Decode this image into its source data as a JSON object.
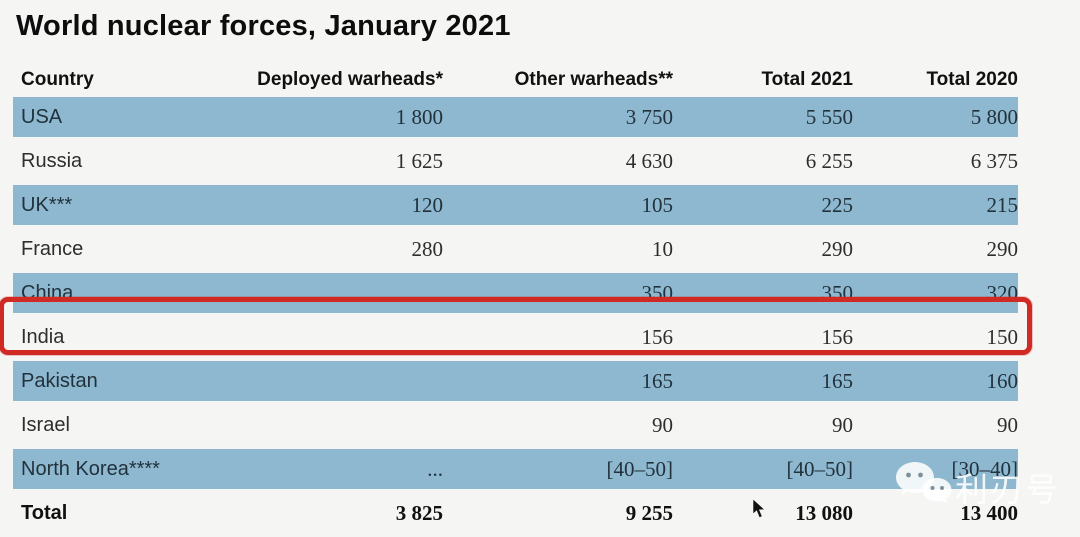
{
  "title": "World nuclear forces, January 2021",
  "chart_data": {
    "type": "table",
    "title": "World nuclear forces, January 2021",
    "columns": [
      "Country",
      "Deployed warheads*",
      "Other warheads**",
      "Total 2021",
      "Total 2020"
    ],
    "rows": [
      [
        "USA",
        "1 800",
        "3 750",
        "5 550",
        "5 800"
      ],
      [
        "Russia",
        "1 625",
        "4 630",
        "6 255",
        "6 375"
      ],
      [
        "UK***",
        "120",
        "105",
        "225",
        "215"
      ],
      [
        "France",
        "280",
        "10",
        "290",
        "290"
      ],
      [
        "China",
        "",
        "350",
        "350",
        "320"
      ],
      [
        "India",
        "",
        "156",
        "156",
        "150"
      ],
      [
        "Pakistan",
        "",
        "165",
        "165",
        "160"
      ],
      [
        "Israel",
        "",
        "90",
        "90",
        "90"
      ],
      [
        "North Korea****",
        "...",
        "[40–50]",
        "[40–50]",
        "[30–40]"
      ],
      [
        "Total",
        "3 825",
        "9 255",
        "13 080",
        "13 400"
      ]
    ],
    "shaded_rows": [
      0,
      2,
      4,
      6,
      8
    ],
    "total_row_index": 9,
    "highlighted_row": "China",
    "layout_hints": "alternating blue shaded bands, numeric columns right-aligned, red annotation box around China row"
  },
  "watermark": {
    "text": "利刃号",
    "icon": "wechat-icon"
  },
  "colors": {
    "background": "#f5f5f3",
    "row_shaded": "#8db8cf",
    "highlight_border": "#cf2b24",
    "watermark": "#ffffff"
  }
}
